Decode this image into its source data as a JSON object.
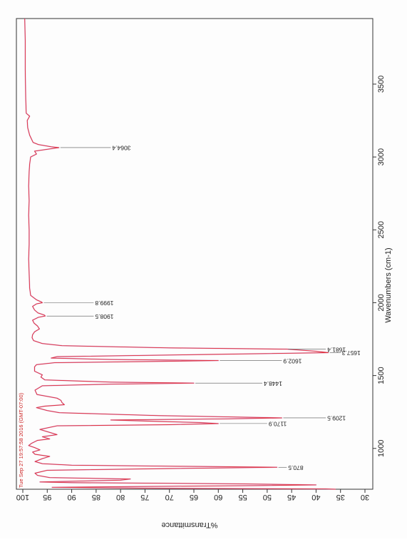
{
  "chart_data": {
    "type": "line",
    "title": "",
    "xlabel": "Wavenumbers (cm-1)",
    "ylabel": "%Transmittance",
    "timestamp": "Tue Sep 27 19:57:58 2016 (GMT-07:00)",
    "xlim": [
      3950,
      720
    ],
    "ylim": [
      30,
      100
    ],
    "x_ticks": [
      3500,
      3000,
      2500,
      2000,
      1500,
      1000
    ],
    "y_ticks": [
      100,
      95,
      90,
      85,
      80,
      75,
      70,
      65,
      60,
      55,
      50,
      45,
      40,
      35,
      30
    ],
    "colors": {
      "line": "#e0303c",
      "line2": "#c070c0",
      "frame": "#333333",
      "annotation": "#555555"
    },
    "series": [
      {
        "values": [
          [
            3950,
            99.6
          ],
          [
            3800,
            99.5
          ],
          [
            3600,
            99.5
          ],
          [
            3400,
            99.4
          ],
          [
            3300,
            99.3
          ],
          [
            3280,
            98.6
          ],
          [
            3250,
            99.1
          ],
          [
            3200,
            99.0
          ],
          [
            3150,
            98.6
          ],
          [
            3100,
            97.9
          ],
          [
            3085,
            96.8
          ],
          [
            3070,
            94.2
          ],
          [
            3064.4,
            92.6
          ],
          [
            3055,
            94.6
          ],
          [
            3040,
            97.6
          ],
          [
            3020,
            97.2
          ],
          [
            3000,
            98.4
          ],
          [
            2950,
            98.6
          ],
          [
            2900,
            98.7
          ],
          [
            2800,
            98.8
          ],
          [
            2700,
            98.7
          ],
          [
            2600,
            98.8
          ],
          [
            2500,
            98.7
          ],
          [
            2400,
            98.7
          ],
          [
            2300,
            98.8
          ],
          [
            2200,
            98.7
          ],
          [
            2100,
            98.6
          ],
          [
            2050,
            98.4
          ],
          [
            2020,
            97.2
          ],
          [
            2005,
            96.2
          ],
          [
            1999.8,
            96.0
          ],
          [
            1992,
            97.2
          ],
          [
            1975,
            98.0
          ],
          [
            1950,
            97.6
          ],
          [
            1930,
            96.9
          ],
          [
            1915,
            95.6
          ],
          [
            1908.5,
            95.4
          ],
          [
            1900,
            96.8
          ],
          [
            1880,
            98.0
          ],
          [
            1860,
            97.7
          ],
          [
            1840,
            97.0
          ],
          [
            1820,
            96.6
          ],
          [
            1800,
            97.6
          ],
          [
            1780,
            98.0
          ],
          [
            1760,
            98.1
          ],
          [
            1740,
            97.8
          ],
          [
            1720,
            96.0
          ],
          [
            1705,
            92.0
          ],
          [
            1690,
            70.0
          ],
          [
            1681.4,
            46.0
          ],
          [
            1667,
            40.0
          ],
          [
            1657.3,
            37.5
          ],
          [
            1645,
            62.0
          ],
          [
            1630,
            93.0
          ],
          [
            1620,
            94.2
          ],
          [
            1610,
            82.0
          ],
          [
            1602.9,
            60.0
          ],
          [
            1596,
            75.0
          ],
          [
            1588,
            93.5
          ],
          [
            1575,
            97.2
          ],
          [
            1560,
            97.6
          ],
          [
            1530,
            97.6
          ],
          [
            1505,
            96.0
          ],
          [
            1490,
            96.3
          ],
          [
            1470,
            95.5
          ],
          [
            1455,
            82.0
          ],
          [
            1448.4,
            65.0
          ],
          [
            1441,
            82.0
          ],
          [
            1430,
            96.0
          ],
          [
            1400,
            97.5
          ],
          [
            1370,
            97.1
          ],
          [
            1345,
            93.0
          ],
          [
            1330,
            92.2
          ],
          [
            1315,
            92.0
          ],
          [
            1300,
            91.5
          ],
          [
            1290,
            95.5
          ],
          [
            1280,
            97.2
          ],
          [
            1260,
            95.0
          ],
          [
            1245,
            92.5
          ],
          [
            1235,
            82.0
          ],
          [
            1225,
            72.0
          ],
          [
            1215,
            55.0
          ],
          [
            1209.5,
            47.0
          ],
          [
            1203,
            58.0
          ],
          [
            1195,
            82.0
          ],
          [
            1185,
            72.0
          ],
          [
            1178,
            64.0
          ],
          [
            1170.9,
            60.0
          ],
          [
            1163,
            70.0
          ],
          [
            1155,
            93.0
          ],
          [
            1130,
            96.5
          ],
          [
            1110,
            94.5
          ],
          [
            1095,
            93.0
          ],
          [
            1080,
            96.0
          ],
          [
            1065,
            94.5
          ],
          [
            1055,
            97.0
          ],
          [
            1035,
            98.2
          ],
          [
            1020,
            98.8
          ],
          [
            1005,
            97.5
          ],
          [
            990,
            96.5
          ],
          [
            975,
            98.0
          ],
          [
            960,
            97.5
          ],
          [
            945,
            94.5
          ],
          [
            930,
            96.0
          ],
          [
            910,
            97.5
          ],
          [
            895,
            96.0
          ],
          [
            885,
            90.0
          ],
          [
            878,
            70.0
          ],
          [
            870.5,
            48.0
          ],
          [
            862,
            70.0
          ],
          [
            850,
            95.0
          ],
          [
            830,
            97.5
          ],
          [
            815,
            97.0
          ],
          [
            800,
            94.5
          ],
          [
            790,
            78.0
          ],
          [
            782,
            80.0
          ],
          [
            770,
            96.5
          ],
          [
            765,
            90.0
          ],
          [
            757,
            56.0
          ],
          [
            750,
            40.0
          ],
          [
            745,
            52.0
          ],
          [
            738,
            78.0
          ],
          [
            733,
            94.0
          ],
          [
            727,
            74.0
          ],
          [
            722,
            38.0
          ],
          [
            720,
            36.0
          ]
        ]
      }
    ],
    "annotations": [
      {
        "label": "3064.4",
        "x": 3064.4,
        "y": 92.6,
        "text_y": 82.0
      },
      {
        "label": "1999.8",
        "x": 1999.8,
        "y": 96.0,
        "text_y": 85.5
      },
      {
        "label": "1908.5",
        "x": 1908.5,
        "y": 95.4,
        "text_y": 85.5
      },
      {
        "label": "1681.4",
        "x": 1681.4,
        "y": 46.0,
        "text_y": 38.0
      },
      {
        "label": "1657.3",
        "x": 1657.3,
        "y": 37.5,
        "text_y": 35.0
      },
      {
        "label": "1602.9",
        "x": 1602.9,
        "y": 60.0,
        "text_y": 47.0
      },
      {
        "label": "1448.4",
        "x": 1448.4,
        "y": 65.0,
        "text_y": 51.0
      },
      {
        "label": "1209.5",
        "x": 1209.5,
        "y": 47.0,
        "text_y": 38.0
      },
      {
        "label": "1170.9",
        "x": 1170.9,
        "y": 60.0,
        "text_y": 50.0
      },
      {
        "label": "870.5",
        "x": 870.5,
        "y": 48.0,
        "text_y": 46.0
      }
    ]
  }
}
